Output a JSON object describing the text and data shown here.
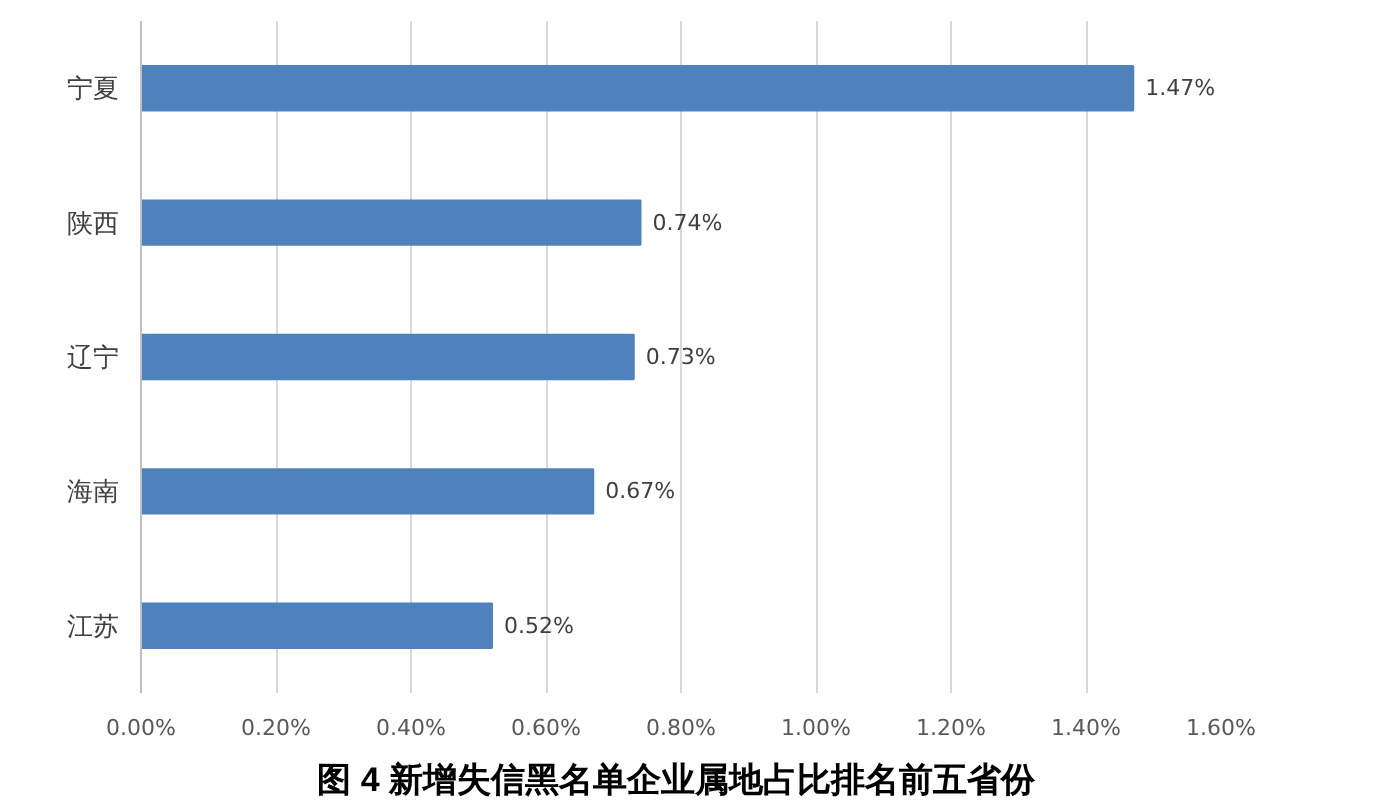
{
  "chart_data": {
    "type": "bar",
    "orientation": "horizontal",
    "title": "图 4  新增失信黑名单企业属地占比排名前五省份",
    "categories": [
      "宁夏",
      "陕西",
      "辽宁",
      "海南",
      "江苏"
    ],
    "values": [
      1.47,
      0.74,
      0.73,
      0.67,
      0.52
    ],
    "value_labels": [
      "1.47%",
      "0.74%",
      "0.73%",
      "0.67%",
      "0.52%"
    ],
    "color": "#4f81bd",
    "xlim": [
      0,
      1.6
    ],
    "xticks": [
      {
        "value": 0,
        "label": "0.00%"
      },
      {
        "value": 0.2,
        "label": "0.20%"
      },
      {
        "value": 0.4,
        "label": "0.40%"
      },
      {
        "value": 0.6,
        "label": "0.60%"
      },
      {
        "value": 0.8,
        "label": "0.80%"
      },
      {
        "value": 1.0,
        "label": "1.00%"
      },
      {
        "value": 1.2,
        "label": "1.20%"
      },
      {
        "value": 1.4,
        "label": "1.40%"
      },
      {
        "value": 1.6,
        "label": "1.60%"
      }
    ],
    "grid": "x"
  }
}
